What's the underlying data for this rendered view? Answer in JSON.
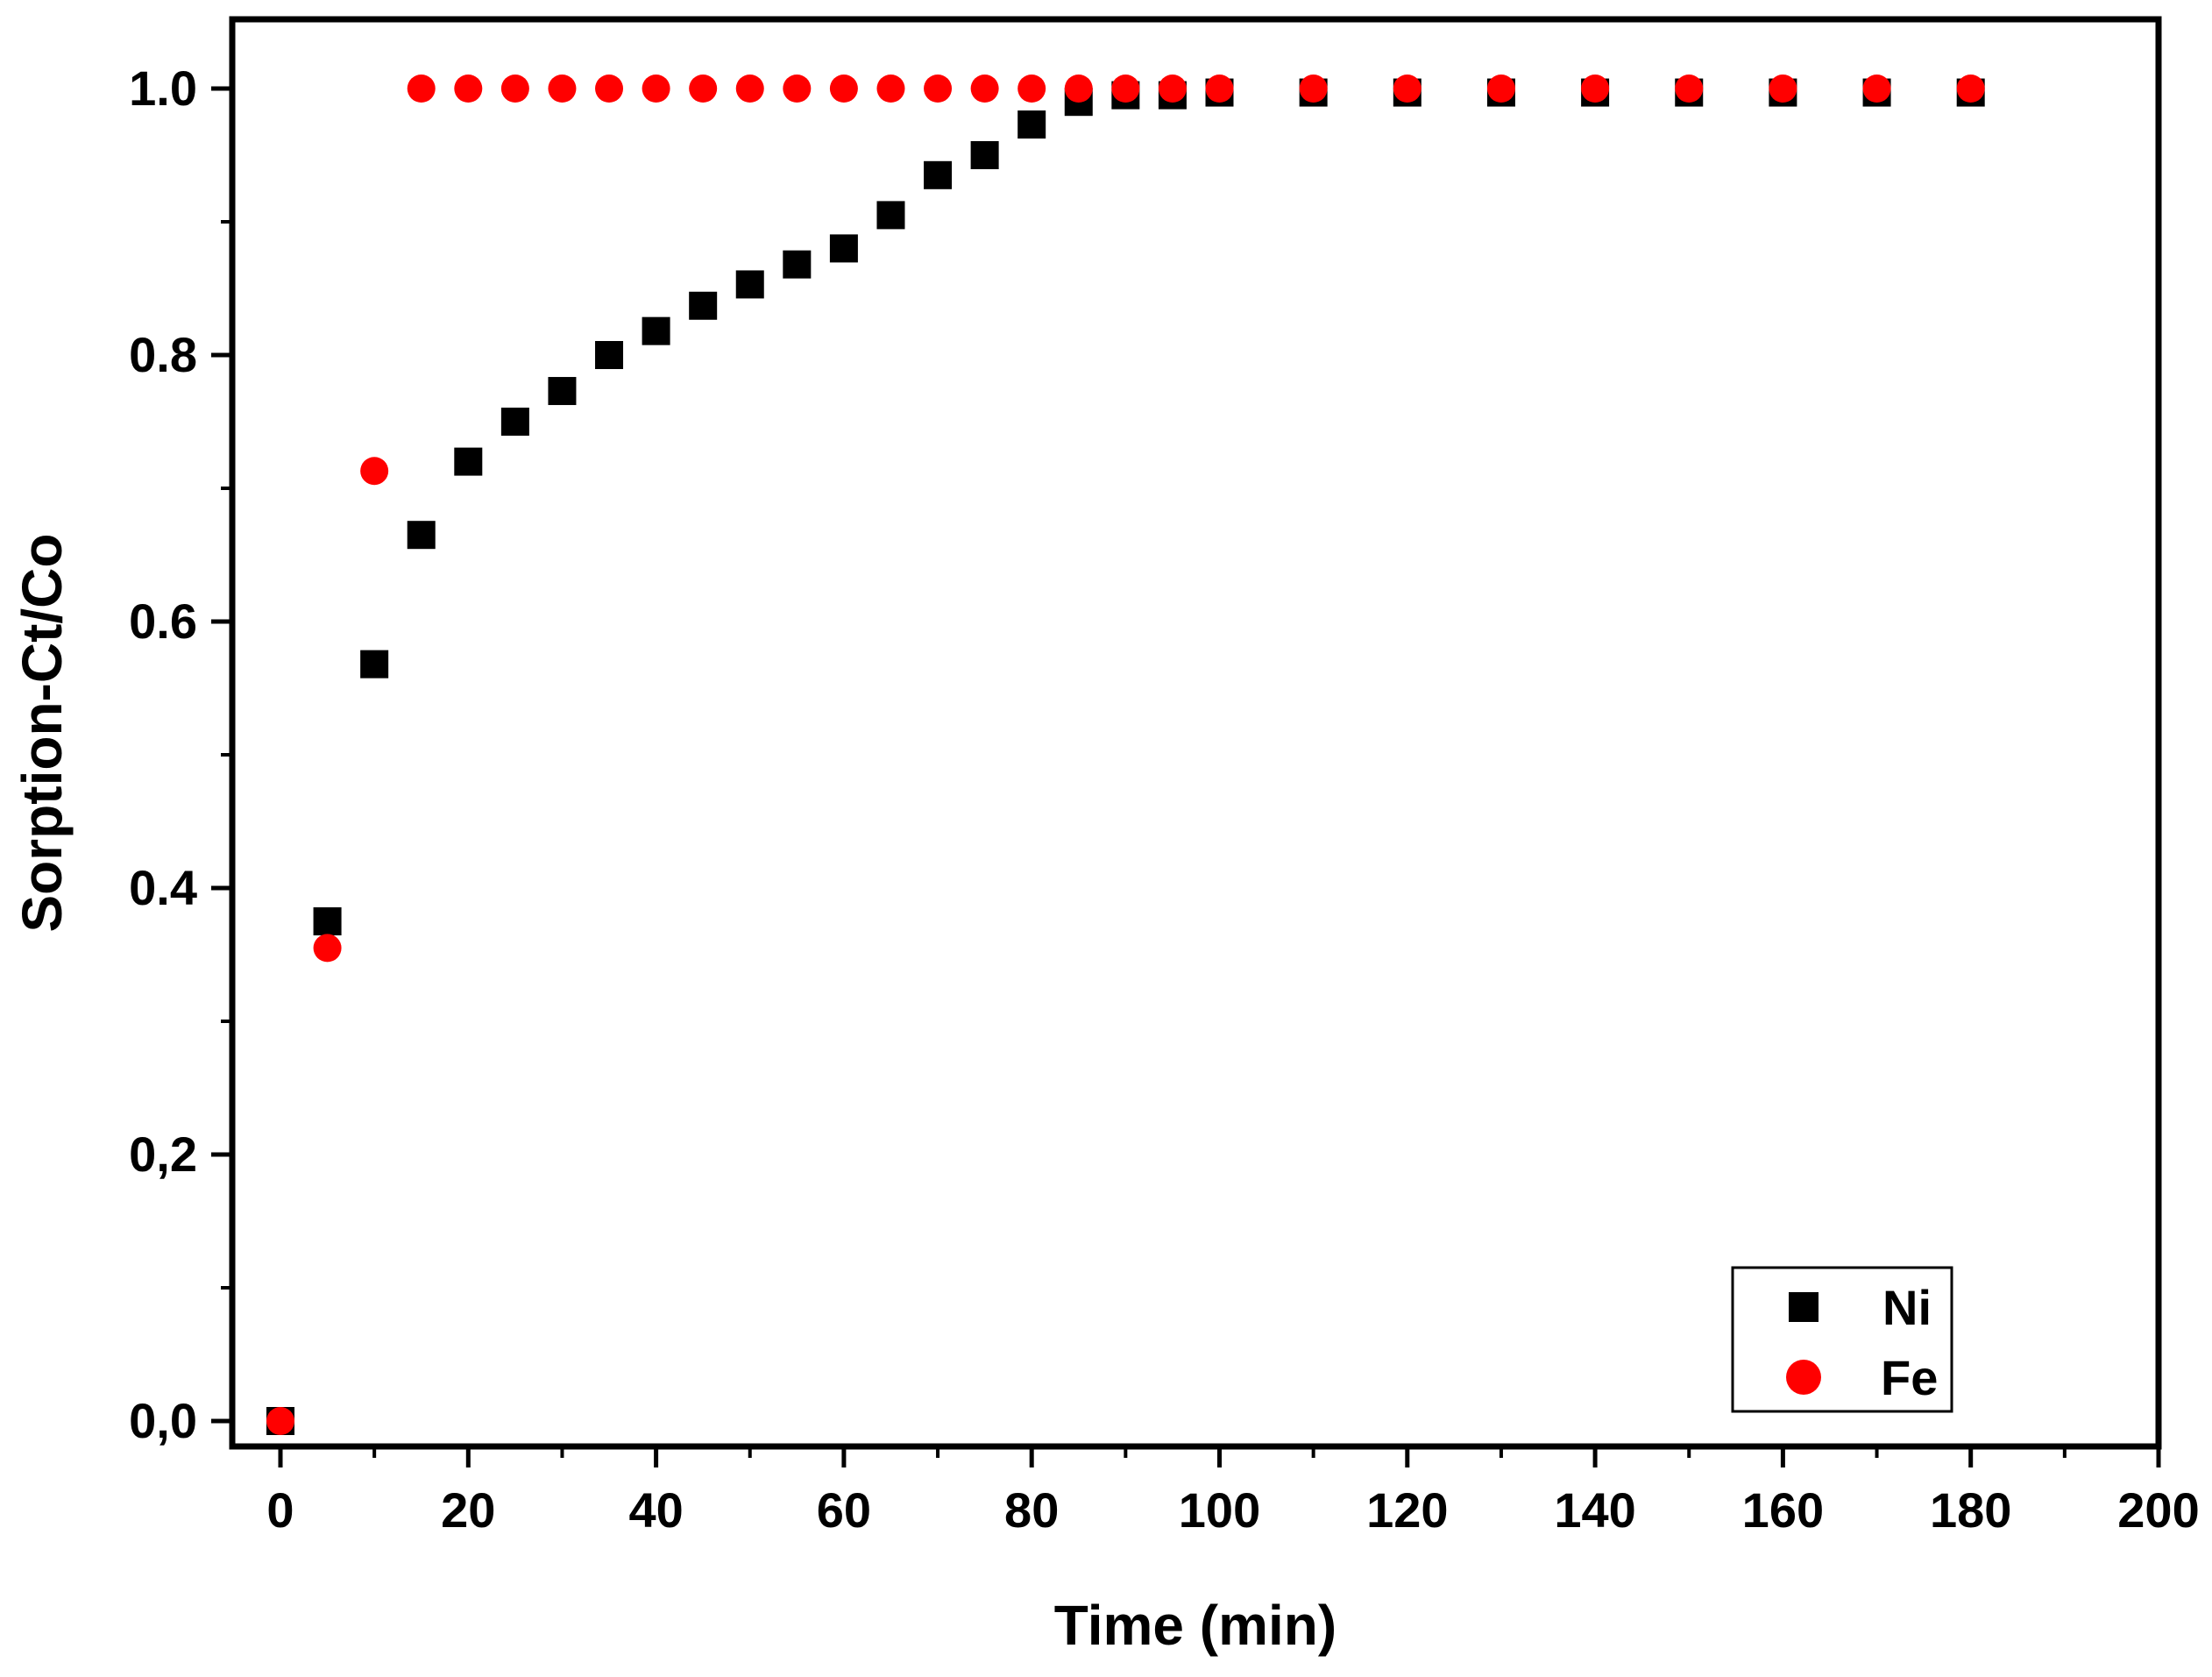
{
  "chart_data": {
    "type": "scatter",
    "title": "",
    "xlabel": "Time (min)",
    "ylabel": "Sorption-Ct/Co",
    "xlim": [
      -5,
      200
    ],
    "ylim": [
      -0.03,
      1.05
    ],
    "x_ticks": [
      0,
      20,
      40,
      60,
      80,
      100,
      120,
      140,
      160,
      180,
      200
    ],
    "x_tick_labels": [
      "0",
      "20",
      "40",
      "60",
      "80",
      "100",
      "120",
      "140",
      "160",
      "180",
      "200"
    ],
    "y_ticks": [
      0.0,
      0.2,
      0.4,
      0.6,
      0.8,
      1.0
    ],
    "y_tick_labels": [
      "0,0",
      "0,2",
      "0.4",
      "0.6",
      "0.8",
      "1.0"
    ],
    "grid": false,
    "legend_position": "bottom-right",
    "series": [
      {
        "name": "Ni",
        "marker": "square",
        "color": "#000000",
        "x": [
          0,
          5,
          10,
          15,
          20,
          25,
          30,
          35,
          40,
          45,
          50,
          55,
          60,
          65,
          70,
          75,
          80,
          85,
          90,
          95,
          100,
          110,
          120,
          130,
          140,
          150,
          160,
          170,
          180
        ],
        "y": [
          0.0,
          0.375,
          0.568,
          0.665,
          0.72,
          0.75,
          0.773,
          0.8,
          0.818,
          0.837,
          0.853,
          0.868,
          0.88,
          0.905,
          0.935,
          0.95,
          0.973,
          0.99,
          0.995,
          0.995,
          0.997,
          0.997,
          0.997,
          0.997,
          0.997,
          0.997,
          0.997,
          0.997,
          0.997
        ]
      },
      {
        "name": "Fe",
        "marker": "circle",
        "color": "#ff0000",
        "x": [
          0,
          5,
          10,
          15,
          20,
          25,
          30,
          35,
          40,
          45,
          50,
          55,
          60,
          65,
          70,
          75,
          80,
          85,
          90,
          95,
          100,
          110,
          120,
          130,
          140,
          150,
          160,
          170,
          180
        ],
        "y": [
          0.0,
          0.355,
          0.713,
          1.0,
          1.0,
          1.0,
          1.0,
          1.0,
          1.0,
          1.0,
          1.0,
          1.0,
          1.0,
          1.0,
          1.0,
          1.0,
          1.0,
          1.0,
          1.0,
          1.0,
          1.0,
          1.0,
          1.0,
          1.0,
          1.0,
          1.0,
          1.0,
          1.0,
          1.0
        ]
      }
    ]
  }
}
